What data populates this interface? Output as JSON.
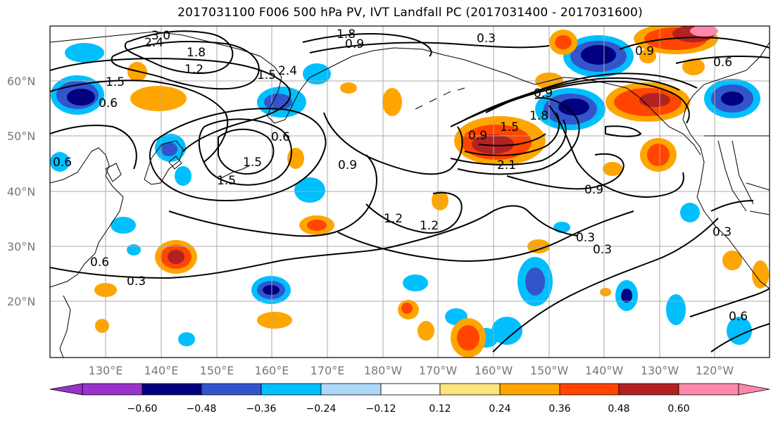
{
  "title": "2017031100 F006 500 hPa PV, IVT Landfall PC (2017031400 - 2017031600)",
  "lat_labels": [
    "60°N",
    "50°N",
    "40°N",
    "30°N",
    "20°N"
  ],
  "lon_labels": [
    "130°E",
    "140°E",
    "150°E",
    "160°E",
    "170°E",
    "180°W",
    "170°W",
    "160°W",
    "150°W",
    "140°W",
    "130°W",
    "120°W"
  ],
  "contour_labels": [
    "3.0",
    "2.4",
    "1.8",
    "1.2",
    "1.5",
    "0.6",
    "1.8",
    "0.9",
    "0.3",
    "0.6",
    "1.5",
    "2.4",
    "1.5",
    "1.5",
    "0.6",
    "1.2",
    "0.9",
    "1.2",
    "0.9",
    "0.6",
    "0.3",
    "0.9",
    "1.5",
    "1.8",
    "0.9",
    "2.1",
    "0.9",
    "0.3",
    "0.3",
    "0.3",
    "0.6",
    "0.6"
  ],
  "colorbar": {
    "colors": [
      "#9933cc",
      "#000080",
      "#3355cc",
      "#00bfff",
      "#add8f6",
      "#ffffff",
      "#ffe57f",
      "#ffa500",
      "#ff4500",
      "#b22222",
      "#ff88aa"
    ],
    "tick_labels": [
      "−0.60",
      "−0.48",
      "−0.36",
      "−0.24",
      "−0.12",
      "0.12",
      "0.24",
      "0.36",
      "0.48",
      "0.60"
    ]
  },
  "colors": {
    "grid": "#aaaaaa",
    "coast": "#000000",
    "contour": "#000000"
  }
}
